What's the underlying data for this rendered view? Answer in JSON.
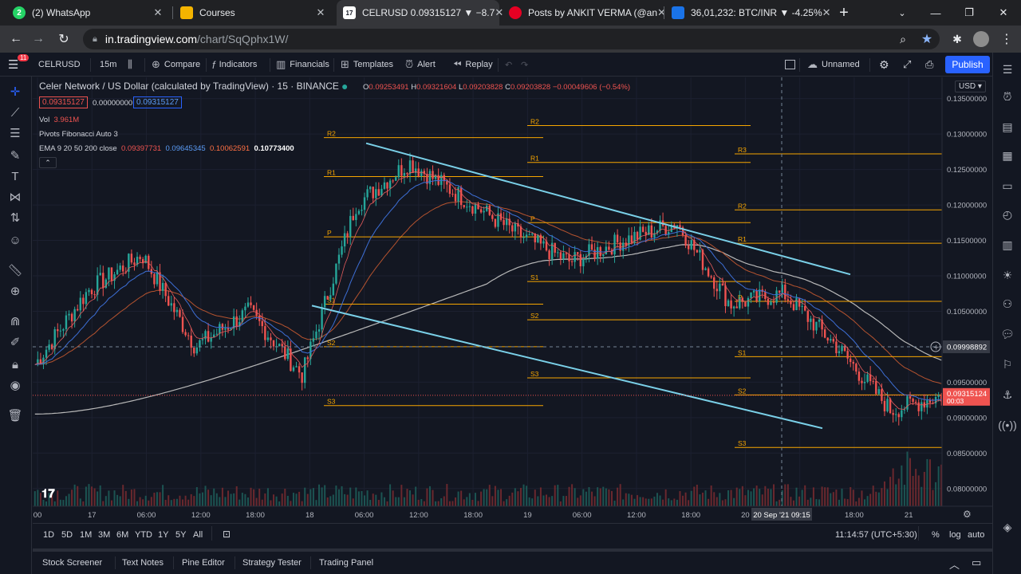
{
  "browser": {
    "tabs": [
      {
        "label": "(2) WhatsApp",
        "icon": "whatsapp-icon",
        "color": "#25d366",
        "glyph": "2"
      },
      {
        "label": "Courses",
        "icon": "courses-icon",
        "color": "#f4b400",
        "glyph": ""
      },
      {
        "label": "CELRUSD 0.09315127 ▼ −8.7",
        "icon": "tradingview-icon",
        "color": "#ffffff",
        "glyph": "17"
      },
      {
        "label": "Posts by ANKIT VERMA (@an",
        "icon": "pinterest-icon",
        "color": "#e60023",
        "glyph": ""
      },
      {
        "label": "36,01,232: BTC/INR ▼ -4.25%",
        "icon": "exchange-icon",
        "color": "#1a73e8",
        "glyph": ""
      }
    ],
    "url_host": "in.tradingview.com",
    "url_path": "/chart/SqQphx1W/"
  },
  "toolbar": {
    "symbol": "CELRUSD",
    "interval": "15m",
    "compare": "Compare",
    "indicators": "Indicators",
    "financials": "Financials",
    "templates": "Templates",
    "alert": "Alert",
    "replay": "Replay",
    "layout_name": "Unnamed",
    "publish": "Publish",
    "notification_badge": "11"
  },
  "legend": {
    "title": "Celer Network / US Dollar (calculated by TradingView) · 15 · BINANCE",
    "ohlc": {
      "o": "0.09253491",
      "h": "0.09321604",
      "l": "0.09203828",
      "c": "0.09203828",
      "chg": "−0.00049606 (−0.54%)"
    },
    "price_box_sell": "0.09315127",
    "price_box_spread": "0.00000000",
    "price_box_buy": "0.09315127",
    "vol_label": "Vol",
    "vol_value": "3.961M",
    "pivots": "Pivots Fibonacci Auto 3",
    "ema_label": "EMA 9 20 50 200 close",
    "ema_values": [
      "0.09397731",
      "0.09645345",
      "0.10062591",
      "0.10773400"
    ]
  },
  "currency": "USD",
  "price_axis": {
    "ticks": [
      "0.13500000",
      "0.13000000",
      "0.12500000",
      "0.12000000",
      "0.11500000",
      "0.11000000",
      "0.10500000",
      "0.09500000",
      "0.09000000",
      "0.08500000",
      "0.08000000"
    ],
    "crosshair_price": "0.09998892",
    "last_price": "0.09315124",
    "countdown": "00:03"
  },
  "time_axis": {
    "ticks": [
      "00",
      "17",
      "06:00",
      "12:00",
      "18:00",
      "18",
      "06:00",
      "12:00",
      "18:00",
      "19",
      "06:00",
      "12:00",
      "18:00",
      "20",
      "0",
      "18:00",
      "21"
    ],
    "crosshair_date": "20 Sep '21",
    "crosshair_time": "09:15"
  },
  "pivot_labels": {
    "g1": [
      "R2",
      "R1",
      "P",
      "S1",
      "S2",
      "S3"
    ],
    "g2": [
      "R2",
      "R1",
      "P",
      "S1",
      "S2",
      "S3"
    ],
    "g3": [
      "R3",
      "R2",
      "R1",
      "P",
      "S1",
      "S2",
      "S3"
    ]
  },
  "ranges": [
    "1D",
    "5D",
    "1M",
    "3M",
    "6M",
    "YTD",
    "1Y",
    "5Y",
    "All"
  ],
  "clock": "11:14:57 (UTC+5:30)",
  "scale_opts": [
    "%",
    "log",
    "auto"
  ],
  "panels": [
    "Stock Screener",
    "Text Notes",
    "Pine Editor",
    "Strategy Tester",
    "Trading Panel"
  ],
  "colors": {
    "up": "#26a69a",
    "down": "#ef5350",
    "pivot": "#f7a600",
    "channel": "#7ad0e8",
    "accent": "#2962ff"
  },
  "chart_data": {
    "type": "candlestick",
    "symbol": "CELRUSD",
    "ylim": [
      0.0775,
      0.138
    ],
    "segments": [
      {
        "from": 0.0975,
        "to": 0.108
      },
      {
        "from": 0.108,
        "to": 0.113
      },
      {
        "from": 0.113,
        "to": 0.1
      },
      {
        "from": 0.1,
        "to": 0.105
      },
      {
        "from": 0.105,
        "to": 0.096
      },
      {
        "from": 0.096,
        "to": 0.12
      },
      {
        "from": 0.12,
        "to": 0.126
      },
      {
        "from": 0.126,
        "to": 0.121
      },
      {
        "from": 0.121,
        "to": 0.116
      },
      {
        "from": 0.116,
        "to": 0.112
      },
      {
        "from": 0.112,
        "to": 0.115
      },
      {
        "from": 0.115,
        "to": 0.1175
      },
      {
        "from": 0.1175,
        "to": 0.106
      },
      {
        "from": 0.106,
        "to": 0.1075
      },
      {
        "from": 0.1075,
        "to": 0.1
      },
      {
        "from": 0.1,
        "to": 0.091
      },
      {
        "from": 0.091,
        "to": 0.0932
      }
    ],
    "pivots": {
      "g1": [
        0.1295,
        0.124,
        0.1155,
        0.106,
        0.1,
        0.0917
      ],
      "g2": [
        0.1312,
        0.126,
        0.1175,
        0.1092,
        0.1038,
        0.0956
      ],
      "g3": [
        0.1272,
        0.1193,
        0.1146,
        0.1064,
        0.0986,
        0.0932,
        0.0858
      ]
    },
    "channel": {
      "upper": [
        [
          0.1287,
          0.1102
        ]
      ],
      "lower": [
        [
          0.1058,
          0.0885
        ]
      ]
    }
  }
}
